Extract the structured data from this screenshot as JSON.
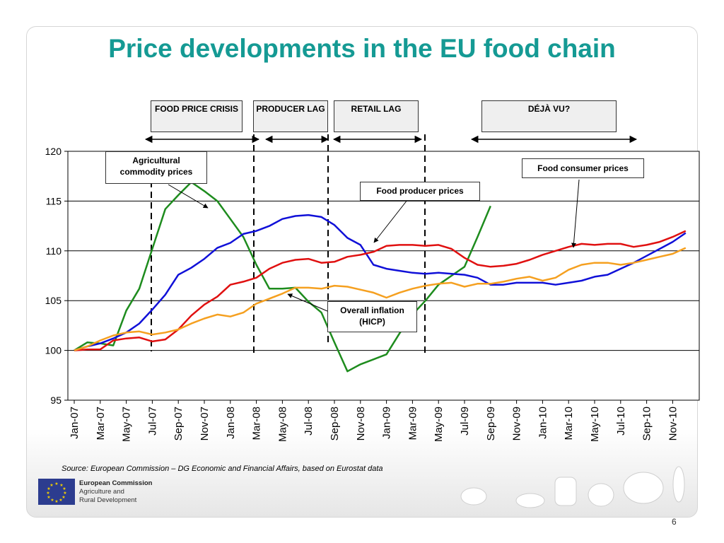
{
  "slide": {
    "title": "Price developments in the EU food chain",
    "source": "Source: European Commission – DG Economic and Financial Affairs, based on Eurostat data",
    "page_number": "6",
    "logo": {
      "line1": "European Commission",
      "line2": "Agriculture and",
      "line3": "Rural Development"
    }
  },
  "phases": [
    {
      "label": "FOOD PRICE CRISIS"
    },
    {
      "label": "PRODUCER LAG"
    },
    {
      "label": "RETAIL LAG"
    },
    {
      "label": "DÉJÀ VU?"
    }
  ],
  "callouts": {
    "agri": "Agricultural commodity prices",
    "consumer": "Food consumer prices",
    "producer": "Food producer prices",
    "hicp": "Overall inflation (HICP)"
  },
  "colors": {
    "agri": "#1e8c1e",
    "producer": "#1010d8",
    "consumer": "#e01010",
    "hicp": "#f5a020",
    "title": "#159a94"
  },
  "chart_data": {
    "type": "line",
    "ylim": [
      95,
      120
    ],
    "yticks": [
      95,
      100,
      105,
      110,
      115,
      120
    ],
    "grid": true,
    "x_tick_labels": [
      "Jan-07",
      "Mar-07",
      "May-07",
      "Jul-07",
      "Sep-07",
      "Nov-07",
      "Jan-08",
      "Mar-08",
      "May-08",
      "Jul-08",
      "Sep-08",
      "Nov-08",
      "Jan-09",
      "Mar-09",
      "May-09",
      "Jul-09",
      "Sep-09",
      "Nov-09",
      "Jan-10",
      "Mar-10",
      "May-10",
      "Jul-10",
      "Sep-10",
      "Nov-10"
    ],
    "series": [
      {
        "key": "agri",
        "values": [
          100,
          100.8,
          100.7,
          100.5,
          104,
          106.2,
          110.2,
          114.2,
          115.6,
          116.9,
          116.0,
          115.0,
          113.2,
          111.4,
          108.6,
          106.2,
          106.2,
          106.3,
          104.9,
          103.8,
          100.8,
          97.9,
          98.6,
          99.1,
          99.6,
          101.7,
          103.6,
          105.0,
          106.6,
          107.5,
          108.4,
          111.4,
          114.5
        ]
      },
      {
        "key": "producer",
        "values": [
          100,
          100.4,
          100.7,
          101.2,
          101.8,
          102.7,
          104.1,
          105.6,
          107.6,
          108.3,
          109.2,
          110.3,
          110.8,
          111.7,
          112.0,
          112.5,
          113.2,
          113.5,
          113.6,
          113.4,
          112.6,
          111.3,
          110.6,
          108.6,
          108.2,
          108.0,
          107.8,
          107.7,
          107.8,
          107.7,
          107.6,
          107.3,
          106.6,
          106.6,
          106.8,
          106.8,
          106.8,
          106.6,
          106.8,
          107.0,
          107.4,
          107.6,
          108.2,
          108.8,
          109.5,
          110.2,
          110.9,
          111.8
        ]
      },
      {
        "key": "consumer",
        "values": [
          100,
          100.1,
          100.1,
          101.0,
          101.2,
          101.3,
          100.9,
          101.1,
          102.1,
          103.5,
          104.6,
          105.4,
          106.6,
          106.9,
          107.3,
          108.2,
          108.8,
          109.1,
          109.2,
          108.8,
          108.9,
          109.4,
          109.6,
          109.9,
          110.5,
          110.6,
          110.6,
          110.5,
          110.6,
          110.2,
          109.3,
          108.6,
          108.4,
          108.5,
          108.7,
          109.1,
          109.6,
          110.0,
          110.4,
          110.7,
          110.6,
          110.7,
          110.7,
          110.4,
          110.6,
          110.9,
          111.4,
          112.0
        ]
      },
      {
        "key": "hicp",
        "values": [
          100,
          100.4,
          101.0,
          101.5,
          101.8,
          101.9,
          101.6,
          101.8,
          102.1,
          102.7,
          103.2,
          103.6,
          103.4,
          103.8,
          104.7,
          105.2,
          105.7,
          106.3,
          106.3,
          106.2,
          106.5,
          106.4,
          106.1,
          105.8,
          105.3,
          105.8,
          106.2,
          106.5,
          106.7,
          106.8,
          106.4,
          106.7,
          106.7,
          106.9,
          107.2,
          107.4,
          107.0,
          107.3,
          108.1,
          108.6,
          108.8,
          108.8,
          108.6,
          108.8,
          109.1,
          109.4,
          109.7,
          110.3
        ]
      }
    ]
  }
}
